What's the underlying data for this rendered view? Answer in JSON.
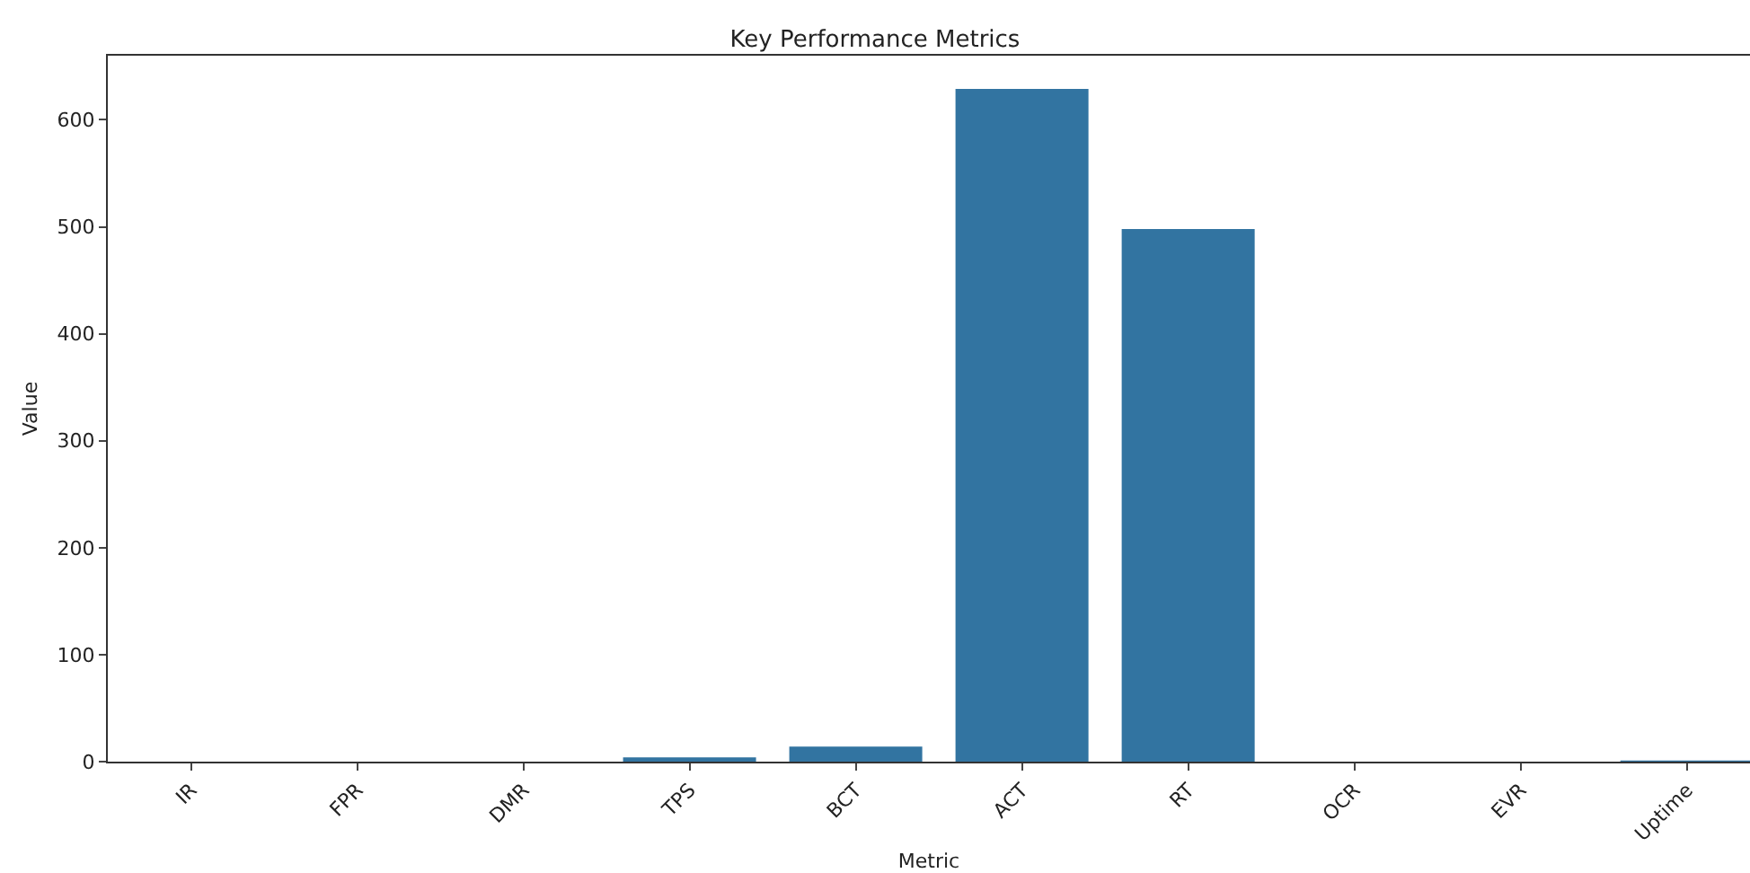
{
  "chart_data": {
    "type": "bar",
    "title": "Key Performance Metrics",
    "xlabel": "Metric",
    "ylabel": "Value",
    "categories": [
      "IR",
      "FPR",
      "DMR",
      "TPS",
      "BCT",
      "ACT",
      "RT",
      "OCR",
      "EVR",
      "Uptime"
    ],
    "values": [
      0,
      0,
      0,
      4,
      14,
      629,
      498,
      0,
      0,
      1
    ],
    "color": "#3274a1",
    "ylim": [
      0,
      660
    ],
    "yticks": [
      0,
      100,
      200,
      300,
      400,
      500,
      600
    ],
    "grid": false,
    "legend": false
  }
}
